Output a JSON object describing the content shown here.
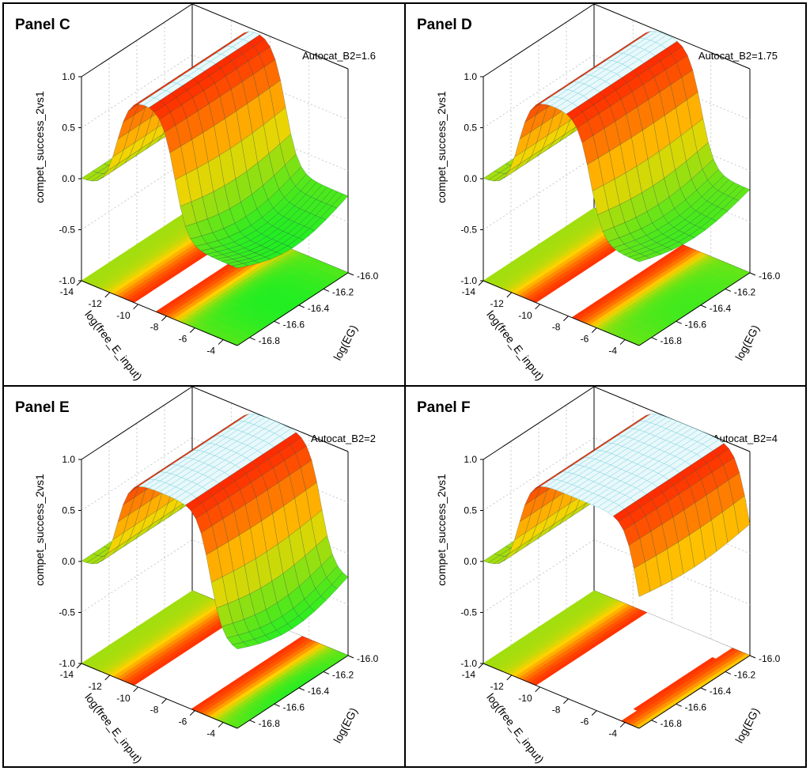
{
  "colors": {
    "high": "#ff2200",
    "mid": "#ffd200",
    "low": "#22ee22",
    "mesh": "#3aa8a8",
    "plateau": "#7fd6e0"
  },
  "chart_data": [
    {
      "type": "surface3d",
      "title": "Panel  C",
      "parameter": "Autocat_B2=1.6",
      "zlabel": "compet_success_2vs1",
      "xlabel": "log(free_E_input)",
      "ylabel": "log(EG)",
      "zticks": [
        "1.0",
        "0.5",
        "0.0",
        "-0.5",
        "-1.0"
      ],
      "xticks": [
        "-14",
        "-12",
        "-10",
        "-8",
        "-6",
        "-4"
      ],
      "yticks": [
        "-16.0",
        "-16.2",
        "-16.4",
        "-16.6",
        "-16.8"
      ],
      "zlim": [
        -1.0,
        1.0
      ],
      "xlim": [
        -14,
        -3
      ],
      "ylim": [
        -16.9,
        -16.0
      ],
      "high_region_x": [
        -11.5,
        -7.5
      ],
      "plateau_value": 1.0,
      "baseline_value": 0.0,
      "min_value": -0.4
    },
    {
      "type": "surface3d",
      "title": "Panel  D",
      "parameter": "Autocat_B2=1.75",
      "zlabel": "compet_success_2vs1",
      "xlabel": "log(free_E_input)",
      "ylabel": "log(EG)",
      "zticks": [
        "1.0",
        "0.5",
        "0.0",
        "-0.5",
        "-1.0"
      ],
      "xticks": [
        "-14",
        "-12",
        "-10",
        "-8",
        "-6",
        "-4"
      ],
      "yticks": [
        "-16.0",
        "-16.2",
        "-16.4",
        "-16.6",
        "-16.8"
      ],
      "zlim": [
        -1.0,
        1.0
      ],
      "xlim": [
        -14,
        -3
      ],
      "ylim": [
        -16.9,
        -16.0
      ],
      "high_region_x": [
        -11.5,
        -6.5
      ],
      "plateau_value": 1.0,
      "baseline_value": 0.0,
      "min_value": -0.3
    },
    {
      "type": "surface3d",
      "title": "Panel  E",
      "parameter": "Autocat_B2=2",
      "zlabel": "compet_success_2vs1",
      "xlabel": "log(free_E_input)",
      "ylabel": "log(EG)",
      "zticks": [
        "1.0",
        "0.5",
        "0.0",
        "-0.5",
        "-1.0"
      ],
      "xticks": [
        "-14",
        "-12",
        "-10",
        "-8",
        "-6",
        "-4"
      ],
      "yticks": [
        "-16.0",
        "-16.2",
        "-16.4",
        "-16.6",
        "-16.8"
      ],
      "zlim": [
        -1.0,
        1.0
      ],
      "xlim": [
        -14,
        -3
      ],
      "ylim": [
        -16.9,
        -16.0
      ],
      "high_region_x": [
        -11.5,
        -5.0
      ],
      "plateau_value": 1.0,
      "baseline_value": 0.0,
      "min_value": -0.4
    },
    {
      "type": "surface3d",
      "title": "Panel  F",
      "parameter": "Autocat_B2=4",
      "zlabel": "compet_success_2vs1",
      "xlabel": "log(free_E_input)",
      "ylabel": "log(EG)",
      "zticks": [
        "1.0",
        "0.5",
        "0.0",
        "-0.5",
        "-1.0"
      ],
      "xticks": [
        "-14",
        "-12",
        "-10",
        "-8",
        "-6",
        "-4"
      ],
      "yticks": [
        "-16.0",
        "-16.2",
        "-16.4",
        "-16.6",
        "-16.8"
      ],
      "zlim": [
        -1.0,
        1.0
      ],
      "xlim": [
        -14,
        -3
      ],
      "ylim": [
        -16.9,
        -16.0
      ],
      "high_region_x": [
        -11.5,
        -3.2
      ],
      "plateau_value": 1.0,
      "baseline_value": 0.0,
      "min_value": -0.45
    }
  ]
}
